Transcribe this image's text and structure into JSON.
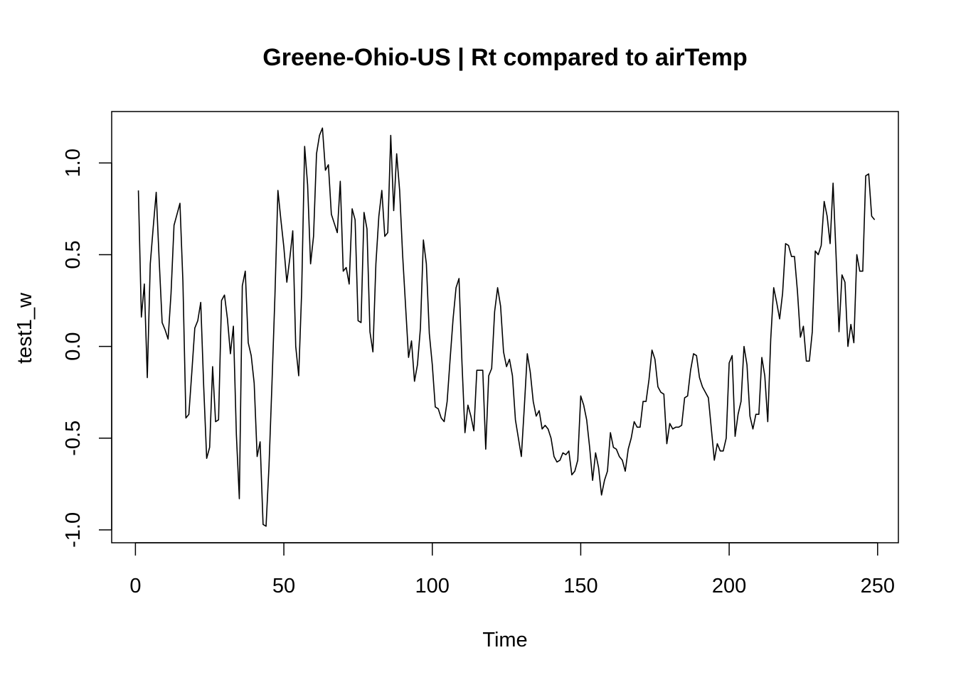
{
  "chart_data": {
    "type": "line",
    "title": "Greene-Ohio-US | Rt compared to airTemp",
    "xlabel": "Time",
    "ylabel": "test1_w",
    "xlim": [
      -8,
      257
    ],
    "ylim": [
      -1.07,
      1.28
    ],
    "xticks": [
      0,
      50,
      100,
      150,
      200,
      250
    ],
    "xtick_labels": [
      "0",
      "50",
      "100",
      "150",
      "200",
      "250"
    ],
    "yticks": [
      -1.0,
      -0.5,
      0.0,
      0.5,
      1.0
    ],
    "ytick_labels": [
      "-1.0",
      "-0.5",
      "0.0",
      "0.5",
      "1.0"
    ],
    "grid": false,
    "line_color": "#000000",
    "series": [
      {
        "x_start": 1,
        "values": [
          0.85,
          0.16,
          0.34,
          -0.17,
          0.45,
          0.65,
          0.84,
          0.47,
          0.13,
          0.09,
          0.04,
          0.29,
          0.66,
          0.72,
          0.78,
          0.35,
          -0.39,
          -0.37,
          -0.14,
          0.1,
          0.14,
          0.24,
          -0.22,
          -0.61,
          -0.55,
          -0.11,
          -0.41,
          -0.4,
          0.25,
          0.28,
          0.15,
          -0.04,
          0.11,
          -0.48,
          -0.83,
          0.33,
          0.41,
          0.02,
          -0.05,
          -0.2,
          -0.6,
          -0.52,
          -0.97,
          -0.98,
          -0.65,
          -0.2,
          0.28,
          0.85,
          0.69,
          0.54,
          0.35,
          0.48,
          0.63,
          0.0,
          -0.16,
          0.3,
          1.09,
          0.88,
          0.45,
          0.6,
          1.05,
          1.15,
          1.19,
          0.96,
          0.99,
          0.72,
          0.67,
          0.62,
          0.9,
          0.41,
          0.43,
          0.34,
          0.75,
          0.69,
          0.14,
          0.13,
          0.73,
          0.64,
          0.08,
          -0.03,
          0.45,
          0.71,
          0.85,
          0.6,
          0.62,
          1.15,
          0.74,
          1.05,
          0.85,
          0.5,
          0.22,
          -0.06,
          0.03,
          -0.19,
          -0.1,
          0.1,
          0.58,
          0.45,
          0.07,
          -0.1,
          -0.33,
          -0.34,
          -0.39,
          -0.41,
          -0.3,
          -0.07,
          0.15,
          0.32,
          0.37,
          -0.09,
          -0.47,
          -0.32,
          -0.38,
          -0.46,
          -0.13,
          -0.13,
          -0.13,
          -0.56,
          -0.16,
          -0.12,
          0.19,
          0.32,
          0.22,
          -0.03,
          -0.11,
          -0.07,
          -0.16,
          -0.4,
          -0.5,
          -0.6,
          -0.33,
          -0.04,
          -0.14,
          -0.3,
          -0.38,
          -0.35,
          -0.45,
          -0.43,
          -0.45,
          -0.5,
          -0.6,
          -0.63,
          -0.62,
          -0.58,
          -0.59,
          -0.57,
          -0.7,
          -0.68,
          -0.62,
          -0.27,
          -0.32,
          -0.4,
          -0.55,
          -0.73,
          -0.58,
          -0.66,
          -0.81,
          -0.73,
          -0.68,
          -0.47,
          -0.55,
          -0.56,
          -0.6,
          -0.62,
          -0.68,
          -0.56,
          -0.5,
          -0.41,
          -0.44,
          -0.44,
          -0.3,
          -0.3,
          -0.18,
          -0.02,
          -0.07,
          -0.22,
          -0.25,
          -0.26,
          -0.53,
          -0.42,
          -0.45,
          -0.44,
          -0.44,
          -0.43,
          -0.28,
          -0.27,
          -0.13,
          -0.04,
          -0.05,
          -0.17,
          -0.22,
          -0.25,
          -0.28,
          -0.45,
          -0.62,
          -0.53,
          -0.57,
          -0.57,
          -0.5,
          -0.09,
          -0.05,
          -0.49,
          -0.37,
          -0.3,
          0.0,
          -0.1,
          -0.38,
          -0.45,
          -0.37,
          -0.37,
          -0.06,
          -0.16,
          -0.41,
          0.04,
          0.32,
          0.24,
          0.15,
          0.29,
          0.56,
          0.55,
          0.49,
          0.49,
          0.3,
          0.05,
          0.11,
          -0.08,
          -0.08,
          0.08,
          0.52,
          0.5,
          0.55,
          0.79,
          0.71,
          0.56,
          0.89,
          0.5,
          0.08,
          0.39,
          0.35,
          0.0,
          0.12,
          0.02,
          0.5,
          0.41,
          0.41,
          0.93,
          0.94,
          0.71,
          0.69
        ]
      }
    ]
  }
}
